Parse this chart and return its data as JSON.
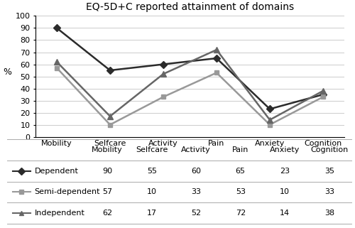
{
  "title": "EQ-5D+C reported attainment of domains",
  "categories": [
    "Mobility",
    "Selfcare",
    "Activity",
    "Pain",
    "Anxiety",
    "Cognition"
  ],
  "series": [
    {
      "name": "Dependent",
      "values": [
        90,
        55,
        60,
        65,
        23,
        35
      ],
      "color": "#2b2b2b",
      "marker": "D",
      "linewidth": 1.8,
      "markersize": 5
    },
    {
      "name": "Semi-dependent",
      "values": [
        57,
        10,
        33,
        53,
        10,
        33
      ],
      "color": "#999999",
      "marker": "s",
      "linewidth": 1.8,
      "markersize": 5
    },
    {
      "name": "Independent",
      "values": [
        62,
        17,
        52,
        72,
        14,
        38
      ],
      "color": "#666666",
      "marker": "^",
      "linewidth": 1.8,
      "markersize": 6
    }
  ],
  "ylabel": "%",
  "ylim": [
    0,
    100
  ],
  "yticks": [
    0,
    10,
    20,
    30,
    40,
    50,
    60,
    70,
    80,
    90,
    100
  ],
  "table_values": [
    [
      90,
      55,
      60,
      65,
      23,
      35
    ],
    [
      57,
      10,
      33,
      53,
      10,
      33
    ],
    [
      62,
      17,
      52,
      72,
      14,
      38
    ]
  ],
  "background_color": "#ffffff",
  "grid_color": "#cccccc",
  "title_fontsize": 10,
  "axis_fontsize": 8,
  "table_fontsize": 8
}
